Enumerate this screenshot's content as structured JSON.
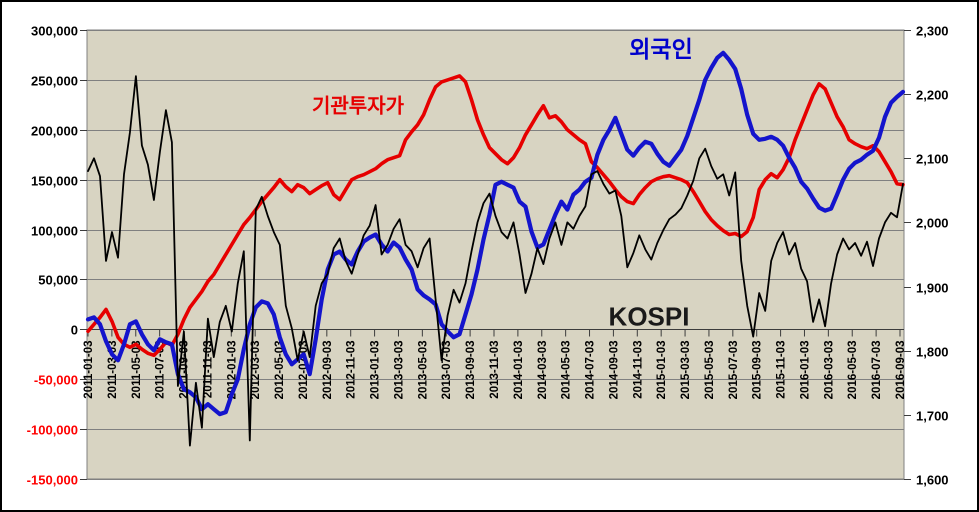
{
  "chart_data": {
    "type": "line",
    "description": "Cumulative investor net-buying (left axis) vs KOSPI index (right axis), daily 2011-01-03 to 2016-09 (values sampled semi-monthly)",
    "labels": {
      "foreign": "외국인",
      "institutional": "기관투자가",
      "kospi": "KOSPI"
    },
    "colors": {
      "institutional": "#e60000",
      "foreign": "#1414cc",
      "kospi": "#000000",
      "foreign_label": "#0000cc",
      "institutional_label": "#e60000",
      "plot_bg": "#d8d4c2",
      "grid": "#808080",
      "axis_line": "#3c3c3c",
      "tick_label_pos": "#000000",
      "tick_label_neg": "#ff0000",
      "border": "#000000"
    },
    "left_axis": {
      "min": -150000,
      "max": 300000,
      "step": 50000,
      "tick_labels": [
        "300,000",
        "250,000",
        "200,000",
        "150,000",
        "100,000",
        "50,000",
        "0",
        "-50,000",
        "-100,000",
        "-150,000"
      ],
      "tick_values": [
        300000,
        250000,
        200000,
        150000,
        100000,
        50000,
        0,
        -50000,
        -100000,
        -150000
      ]
    },
    "right_axis": {
      "min": 1600,
      "max": 2300,
      "step": 100,
      "tick_labels": [
        "2,300",
        "2,200",
        "2,100",
        "2,000",
        "1,900",
        "1,800",
        "1,700",
        "1,600"
      ],
      "tick_values": [
        2300,
        2200,
        2100,
        2000,
        1900,
        1800,
        1700,
        1600
      ]
    },
    "x_axis": {
      "tick_labels": [
        "2011-01-03",
        "2011-03-03",
        "2011-05-03",
        "2011-07-03",
        "2011-09-03",
        "2011-11-03",
        "2012-01-03",
        "2012-03-03",
        "2012-05-03",
        "2012-07-03",
        "2012-09-03",
        "2012-11-03",
        "2013-01-03",
        "2013-03-03",
        "2013-05-03",
        "2013-07-03",
        "2013-09-03",
        "2013-11-03",
        "2014-01-03",
        "2014-03-03",
        "2014-05-03",
        "2014-07-03",
        "2014-09-03",
        "2014-11-03",
        "2015-01-03",
        "2015-03-03",
        "2015-05-03",
        "2015-07-03",
        "2015-09-03",
        "2015-11-03",
        "2016-01-03",
        "2016-03-03",
        "2016-05-03",
        "2016-07-03",
        "2016-09-03"
      ]
    },
    "grid": "horizontal only",
    "legend": "none (inline series labels)",
    "series": [
      {
        "name": "기관투자가",
        "axis": "left",
        "color": "#e60000",
        "width": 3.6,
        "values": [
          -2000,
          5000,
          12000,
          20000,
          8000,
          -8000,
          -15000,
          -18000,
          -15000,
          -20000,
          -24000,
          -26000,
          -20000,
          -13000,
          -16000,
          -5000,
          10000,
          22000,
          30000,
          38000,
          48000,
          55000,
          65000,
          75000,
          85000,
          95000,
          105000,
          112000,
          120000,
          128000,
          135000,
          142000,
          150000,
          143000,
          138000,
          145000,
          142000,
          136000,
          140000,
          144000,
          147000,
          135000,
          130000,
          140000,
          150000,
          153000,
          155000,
          158000,
          161000,
          166000,
          170000,
          172000,
          174000,
          190000,
          198000,
          205000,
          215000,
          230000,
          243000,
          248000,
          250000,
          252000,
          254000,
          248000,
          230000,
          210000,
          195000,
          182000,
          176000,
          170000,
          166000,
          172000,
          182000,
          195000,
          205000,
          215000,
          224000,
          212000,
          214000,
          208000,
          200000,
          195000,
          190000,
          186000,
          168000,
          162000,
          155000,
          148000,
          140000,
          133000,
          128000,
          126000,
          135000,
          142000,
          148000,
          151000,
          153000,
          154000,
          152000,
          150000,
          147000,
          138000,
          128000,
          118000,
          110000,
          104000,
          99000,
          95000,
          96000,
          93000,
          98000,
          112000,
          140000,
          150000,
          156000,
          152000,
          160000,
          172000,
          190000,
          205000,
          220000,
          235000,
          246000,
          241000,
          227000,
          213000,
          203000,
          190000,
          186000,
          183000,
          181000,
          184000,
          178000,
          168000,
          158000,
          146000,
          145000
        ]
      },
      {
        "name": "외국인",
        "axis": "left",
        "color": "#1414cc",
        "width": 4.2,
        "values": [
          10000,
          12000,
          5000,
          -12000,
          -25000,
          -31000,
          -15000,
          5000,
          8000,
          -5000,
          -15000,
          -21000,
          -10000,
          -13000,
          -15000,
          -45000,
          -60000,
          -63000,
          -68000,
          -80000,
          -75000,
          -80000,
          -85000,
          -83000,
          -65000,
          -50000,
          -20000,
          5000,
          22000,
          28000,
          26000,
          15000,
          -8000,
          -25000,
          -35000,
          -30000,
          -25000,
          -45000,
          -10000,
          30000,
          60000,
          75000,
          78000,
          70000,
          65000,
          78000,
          88000,
          92000,
          95000,
          85000,
          78000,
          87000,
          82000,
          70000,
          60000,
          40000,
          34000,
          30000,
          25000,
          5000,
          -2000,
          -8000,
          -5000,
          15000,
          35000,
          60000,
          90000,
          115000,
          145000,
          148000,
          145000,
          142000,
          128000,
          123000,
          98000,
          82000,
          85000,
          100000,
          115000,
          128000,
          120000,
          135000,
          140000,
          148000,
          152000,
          175000,
          190000,
          200000,
          212000,
          196000,
          180000,
          174000,
          182000,
          188000,
          186000,
          176000,
          168000,
          164000,
          172000,
          180000,
          194000,
          212000,
          230000,
          250000,
          262000,
          272000,
          277000,
          270000,
          261000,
          241000,
          215000,
          196000,
          190000,
          191000,
          193000,
          190000,
          184000,
          172000,
          162000,
          148000,
          141000,
          131000,
          122000,
          119000,
          121000,
          135000,
          150000,
          161000,
          167000,
          170000,
          175000,
          179000,
          192000,
          213000,
          227000,
          233000,
          238000
        ]
      },
      {
        "name": "KOSPI",
        "axis": "right",
        "color": "#000000",
        "width": 1.8,
        "values": [
          2080,
          2100,
          2072,
          1940,
          1985,
          1945,
          2075,
          2140,
          2228,
          2120,
          2090,
          2035,
          2110,
          2175,
          2125,
          1745,
          1830,
          1652,
          1750,
          1680,
          1850,
          1790,
          1845,
          1870,
          1830,
          1905,
          1955,
          1660,
          2020,
          2040,
          2010,
          1985,
          1965,
          1870,
          1835,
          1785,
          1830,
          1790,
          1870,
          1905,
          1920,
          1960,
          1975,
          1940,
          1920,
          1950,
          1980,
          1995,
          2027,
          1950,
          1965,
          1990,
          2005,
          1965,
          1955,
          1930,
          1960,
          1975,
          1880,
          1785,
          1855,
          1895,
          1875,
          1905,
          1955,
          2000,
          2030,
          2045,
          2010,
          1985,
          1975,
          2000,
          1950,
          1890,
          1920,
          1960,
          1935,
          1975,
          2000,
          1965,
          2000,
          1990,
          2010,
          2025,
          2075,
          2080,
          2060,
          2045,
          2050,
          2010,
          1930,
          1952,
          1980,
          1958,
          1942,
          1968,
          1988,
          2005,
          2012,
          2022,
          2042,
          2065,
          2100,
          2115,
          2088,
          2068,
          2075,
          2042,
          2078,
          1940,
          1870,
          1822,
          1890,
          1862,
          1940,
          1968,
          1985,
          1950,
          1968,
          1928,
          1908,
          1845,
          1880,
          1838,
          1905,
          1950,
          1975,
          1958,
          1968,
          1948,
          1970,
          1932,
          1975,
          2000,
          2015,
          2008,
          2060
        ]
      }
    ]
  }
}
